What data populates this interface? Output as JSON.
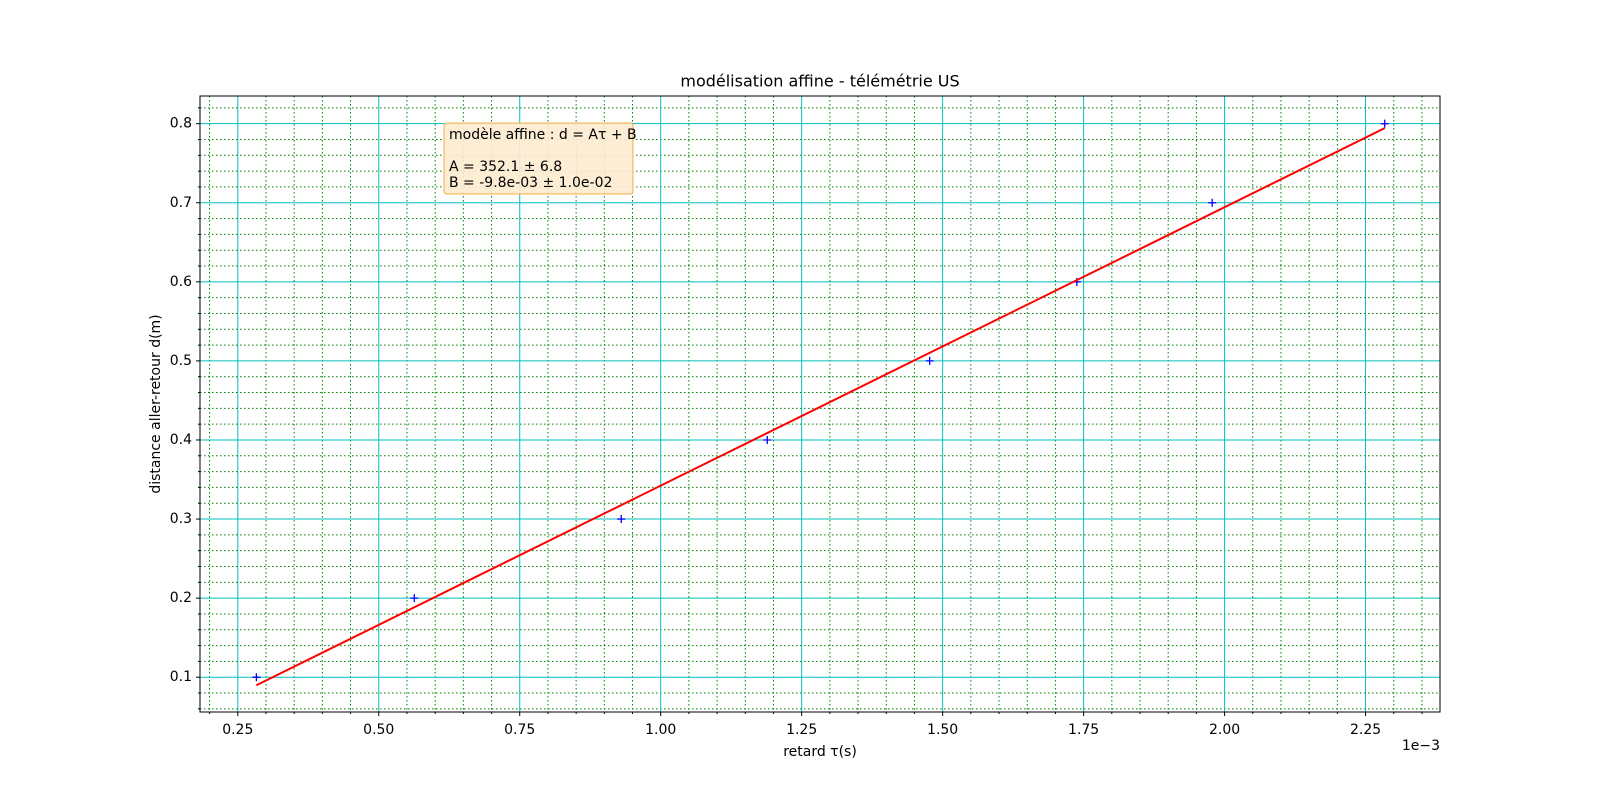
{
  "chart_data": {
    "type": "scatter",
    "title": "modélisation affine - télémétrie US",
    "xlabel": "retard τ(s)",
    "ylabel": "distance aller-retour d(m)",
    "x_offset_label": "1e−3",
    "annotation": [
      "modèle affine : d = Aτ + B",
      "A = 352.1 ± 6.8",
      "B = -9.8e-03 ± 1.0e-02"
    ],
    "series": [
      {
        "color": "#0000ff",
        "marker": "+",
        "x": [
          0.283,
          0.563,
          0.93,
          1.189,
          1.477,
          1.738,
          1.978,
          2.284
        ],
        "values": [
          0.1,
          0.2,
          0.3,
          0.4,
          0.5,
          0.6,
          0.7,
          0.8
        ]
      },
      {
        "color": "#ff0000",
        "marker": "line",
        "x": [
          0.283,
          2.284
        ],
        "values": [
          0.0898,
          0.7944
        ]
      }
    ],
    "xlim": [
      0.183,
      2.382
    ],
    "ylim": [
      0.056,
      0.835
    ],
    "xticks": [
      0.25,
      0.5,
      0.75,
      1.0,
      1.25,
      1.5,
      1.75,
      2.0,
      2.25
    ],
    "xtick_labels": [
      "0.25",
      "0.50",
      "0.75",
      "1.00",
      "1.25",
      "1.50",
      "1.75",
      "2.00",
      "2.25"
    ],
    "yticks": [
      0.1,
      0.2,
      0.3,
      0.4,
      0.5,
      0.6,
      0.7,
      0.8
    ],
    "xminor": [
      0.2,
      0.3,
      0.35,
      0.4,
      0.45,
      0.55,
      0.6,
      0.65,
      0.7,
      0.8,
      0.85,
      0.9,
      0.95,
      1.05,
      1.1,
      1.15,
      1.2,
      1.3,
      1.35,
      1.4,
      1.45,
      1.55,
      1.6,
      1.65,
      1.7,
      1.8,
      1.85,
      1.9,
      1.95,
      2.05,
      2.1,
      2.15,
      2.2,
      2.3,
      2.35
    ],
    "yminor": [
      0.06,
      0.08,
      0.12,
      0.14,
      0.16,
      0.18,
      0.22,
      0.24,
      0.26,
      0.28,
      0.32,
      0.34,
      0.36,
      0.38,
      0.42,
      0.44,
      0.46,
      0.48,
      0.52,
      0.54,
      0.56,
      0.58,
      0.62,
      0.64,
      0.66,
      0.68,
      0.72,
      0.74,
      0.76,
      0.78,
      0.82
    ],
    "grid": true,
    "major_grid_color": "#00bfbf",
    "minor_grid_color": "#008000"
  }
}
